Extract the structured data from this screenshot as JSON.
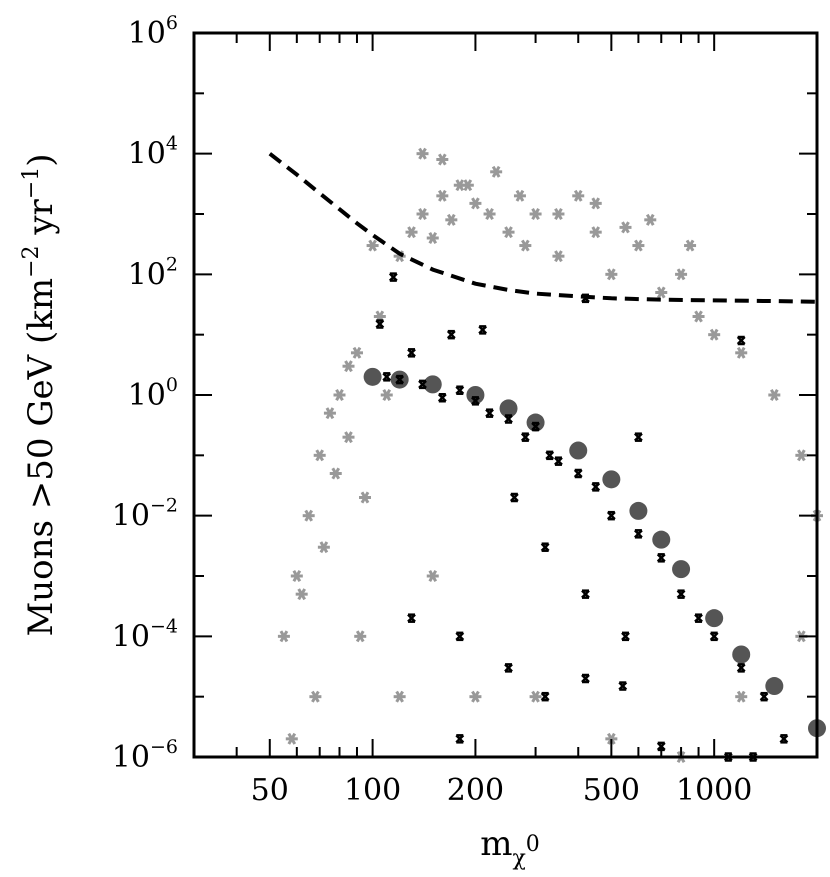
{
  "chart_data": {
    "type": "scatter",
    "title": "",
    "xlabel": "m",
    "xlabel_sub": "χ",
    "xlabel_sup": "0",
    "ylabel": "Muons >50 GeV (km",
    "ylabel_exp1": "−2",
    "ylabel_mid": " yr",
    "ylabel_exp2": "−1",
    "ylabel_end": ")",
    "x_scale": "log",
    "y_scale": "log",
    "xlim": [
      30,
      2000
    ],
    "ylim": [
      1e-06,
      1000000.0
    ],
    "x_ticks": [
      {
        "value": 50,
        "label": "50"
      },
      {
        "value": 100,
        "label": "100"
      },
      {
        "value": 200,
        "label": "200"
      },
      {
        "value": 500,
        "label": "500"
      },
      {
        "value": 1000,
        "label": "1000"
      }
    ],
    "y_ticks": [
      {
        "value": 1e-06,
        "base": "10",
        "exp": "−6"
      },
      {
        "value": 0.0001,
        "base": "10",
        "exp": "−4"
      },
      {
        "value": 0.01,
        "base": "10",
        "exp": "−2"
      },
      {
        "value": 1,
        "base": "10",
        "exp": "0"
      },
      {
        "value": 100,
        "base": "10",
        "exp": "2"
      },
      {
        "value": 10000,
        "base": "10",
        "exp": "4"
      },
      {
        "value": 1000000,
        "base": "10",
        "exp": "6"
      }
    ],
    "grid": false,
    "legend": "none",
    "colors": {
      "light_scatter": "#999999",
      "dark_band": "#555555",
      "black_markers": "#000000",
      "limit_curve": "#000000"
    },
    "series": [
      {
        "style": "dashed-line",
        "x": [
          50,
          60,
          70,
          80,
          90,
          100,
          120,
          150,
          200,
          250,
          300,
          400,
          500,
          700,
          1000,
          1500,
          2000
        ],
        "y": [
          10000,
          4500,
          2200,
          1200,
          700,
          450,
          220,
          120,
          70,
          55,
          48,
          43,
          40,
          38,
          37,
          36,
          35
        ]
      },
      {
        "style": "light-gray-asterisks",
        "x": [
          100,
          105,
          110,
          120,
          130,
          140,
          150,
          160,
          170,
          180,
          200,
          220,
          250,
          280,
          300,
          350,
          400,
          450,
          500,
          600,
          700,
          800,
          900,
          1000,
          1200,
          1500,
          1800,
          2000,
          55,
          60,
          65,
          70,
          75,
          80,
          85,
          90,
          95,
          58,
          62,
          68,
          72,
          78,
          85,
          92,
          120,
          150,
          200,
          300,
          500,
          800,
          1200,
          1800,
          140,
          160,
          190,
          230,
          270,
          350,
          450,
          550,
          650,
          850
        ],
        "y": [
          300,
          20,
          1,
          200,
          500,
          1000,
          400,
          2000,
          800,
          3000,
          1500,
          1000,
          500,
          300,
          1000,
          200,
          2000,
          500,
          100,
          300,
          50,
          100,
          20,
          10,
          5,
          1,
          0.1,
          0.01,
          0.0001,
          0.001,
          0.01,
          0.1,
          0.5,
          1,
          3,
          5,
          0.02,
          2e-06,
          0.0005,
          1e-05,
          0.003,
          0.05,
          0.2,
          0.0001,
          1e-05,
          0.001,
          1e-05,
          1e-05,
          2e-06,
          1e-06,
          1e-05,
          0.0001,
          10000,
          8000,
          3000,
          5000,
          2000,
          1000,
          1500,
          600,
          800,
          300
        ]
      },
      {
        "style": "dark-gray-band",
        "x": [
          100,
          120,
          150,
          200,
          250,
          300,
          400,
          500,
          600,
          700,
          800,
          1000,
          1200,
          1500,
          2000
        ],
        "y": [
          2,
          1.8,
          1.5,
          1,
          0.6,
          0.35,
          0.12,
          0.04,
          0.012,
          0.004,
          0.0013,
          0.0002,
          5e-05,
          1.5e-05,
          3e-06
        ]
      },
      {
        "style": "black-x-markers",
        "x": [
          110,
          120,
          140,
          160,
          180,
          200,
          220,
          250,
          280,
          300,
          330,
          350,
          400,
          450,
          500,
          600,
          700,
          800,
          900,
          1000,
          1200,
          1400,
          1600,
          105,
          115,
          130,
          170,
          210,
          260,
          320,
          420,
          550,
          130,
          180,
          250,
          320,
          420,
          540,
          180,
          700,
          1100,
          1300,
          420,
          1200,
          600
        ],
        "y": [
          2,
          1.8,
          1.5,
          0.9,
          1.2,
          0.8,
          0.5,
          0.4,
          0.2,
          0.3,
          0.1,
          0.08,
          0.05,
          0.03,
          0.01,
          0.005,
          0.002,
          0.0005,
          0.0002,
          0.0001,
          3e-05,
          1e-05,
          2e-06,
          15,
          90,
          5,
          10,
          12,
          0.02,
          0.003,
          0.0005,
          0.0001,
          0.0002,
          0.0001,
          3e-05,
          1e-05,
          2e-05,
          1.5e-05,
          2e-06,
          1.5e-06,
          1e-06,
          1e-06,
          40,
          8,
          0.2
        ]
      }
    ]
  }
}
